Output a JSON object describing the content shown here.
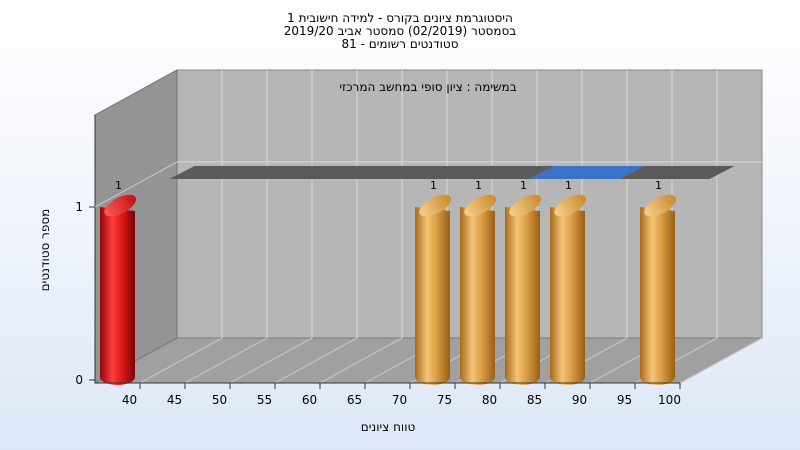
{
  "chart_data": {
    "type": "bar",
    "title_lines": [
      "היסטוגרמת ציונים בקורס - למידה חישובית 1",
      "בסמסטר  (02/2019)  סמסטר אביב 2019/20",
      "סטודנטים רשומים - 81"
    ],
    "annotation": "במשימה : ציון סופי במחשב המרכזי",
    "xlabel": "טווח ציונים",
    "ylabel": "מספר סטודנטים",
    "x_ticks": [
      40,
      45,
      50,
      55,
      60,
      65,
      70,
      75,
      80,
      85,
      90,
      95,
      100
    ],
    "y_ticks": [
      0,
      1
    ],
    "ylim": [
      0,
      1
    ],
    "grid": true,
    "bars": [
      {
        "x": 40,
        "value": 1,
        "label": "1",
        "color": "#e21c1c"
      },
      {
        "x": 75,
        "value": 1,
        "label": "1",
        "color": "#d99a36"
      },
      {
        "x": 80,
        "value": 1,
        "label": "1",
        "color": "#d99a36"
      },
      {
        "x": 85,
        "value": 1,
        "label": "1",
        "color": "#d99a36"
      },
      {
        "x": 90,
        "value": 1,
        "label": "1",
        "color": "#d99a36"
      },
      {
        "x": 100,
        "value": 1,
        "label": "1",
        "color": "#d99a36"
      }
    ],
    "reference_band": {
      "segments": [
        {
          "from": 40,
          "to": 80,
          "color": "#5a5a5a"
        },
        {
          "from": 80,
          "to": 90,
          "color": "#3a72c8"
        },
        {
          "from": 90,
          "to": 100,
          "color": "#5a5a5a"
        }
      ]
    }
  }
}
